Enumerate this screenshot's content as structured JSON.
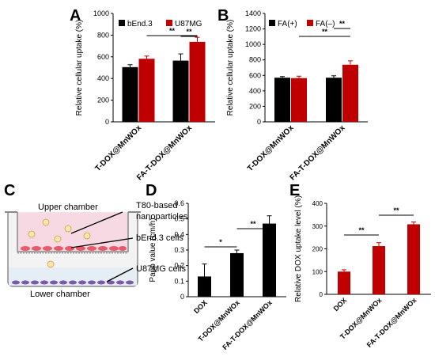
{
  "colors": {
    "black": "#000000",
    "red": "#c00000",
    "gray": "#808080"
  },
  "chart_data": [
    {
      "panel": "A",
      "type": "bar",
      "categories": [
        "T-DOX@MnWOx",
        "FA-T-DOX@MnWOx"
      ],
      "series": [
        {
          "name": "bEnd.3",
          "color": "#000000",
          "values": [
            505,
            565
          ],
          "errors": [
            22,
            62
          ]
        },
        {
          "name": "U87MG",
          "color": "#c00000",
          "values": [
            582,
            738
          ],
          "errors": [
            25,
            42
          ]
        }
      ],
      "ylabel": "Relative cellular uptake (%)",
      "ylim": [
        0,
        1000
      ],
      "yticks": [
        0,
        200,
        400,
        600,
        800,
        1000
      ],
      "legend": "top-left",
      "significance": [
        {
          "from": [
            0,
            1
          ],
          "to": [
            1,
            1
          ],
          "label": "**"
        },
        {
          "from": [
            1,
            0
          ],
          "to": [
            1,
            1
          ],
          "label": "**"
        }
      ]
    },
    {
      "panel": "B",
      "type": "bar",
      "categories": [
        "T-DOX@MnWOx",
        "FA-T-DOX@MnWOx"
      ],
      "series": [
        {
          "name": "FA(+)",
          "color": "#000000",
          "values": [
            570,
            570
          ],
          "errors": [
            15,
            25
          ]
        },
        {
          "name": "FA(–)",
          "color": "#c00000",
          "values": [
            565,
            738
          ],
          "errors": [
            25,
            50
          ]
        }
      ],
      "ylabel": "Relative cellular uptake (%)",
      "ylim": [
        0,
        1400
      ],
      "yticks": [
        0,
        200,
        400,
        600,
        800,
        1000,
        1200,
        1400
      ],
      "legend": "top-left",
      "significance": [
        {
          "from": [
            0,
            1
          ],
          "to": [
            1,
            1
          ],
          "label": "**"
        },
        {
          "from": [
            1,
            0
          ],
          "to": [
            1,
            1
          ],
          "label": "**"
        }
      ]
    },
    {
      "panel": "D",
      "type": "bar",
      "categories": [
        "DOX",
        "T-DOX@MnWOx",
        "FA-T-DOX@MnWOx"
      ],
      "series": [
        {
          "name": "",
          "color": "#000000",
          "values": [
            0.13,
            0.28,
            0.47
          ],
          "errors": [
            0.08,
            0.02,
            0.05
          ]
        }
      ],
      "ylabel": "Papp value (cm/h)",
      "ylim": [
        0,
        0.6
      ],
      "yticks": [
        0,
        0.1,
        0.2,
        0.3,
        0.4,
        0.5,
        0.6
      ],
      "significance": [
        {
          "from": [
            0,
            0
          ],
          "to": [
            1,
            0
          ],
          "label": "*"
        },
        {
          "from": [
            1,
            0
          ],
          "to": [
            2,
            0
          ],
          "label": "**"
        }
      ]
    },
    {
      "panel": "E",
      "type": "bar",
      "categories": [
        "DOX",
        "T-DOX@MnWOx",
        "FA-T-DOX@MnWOx"
      ],
      "series": [
        {
          "name": "",
          "color": "#c00000",
          "values": [
            100,
            212,
            308
          ],
          "errors": [
            8,
            15,
            10
          ]
        }
      ],
      "ylabel": "Relative DOX uptake level (%)",
      "ylim": [
        0,
        400
      ],
      "yticks": [
        0,
        100,
        200,
        300,
        400
      ],
      "significance": [
        {
          "from": [
            0,
            0
          ],
          "to": [
            1,
            0
          ],
          "label": "**"
        },
        {
          "from": [
            1,
            0
          ],
          "to": [
            2,
            0
          ],
          "label": "**"
        }
      ]
    }
  ],
  "panels": {
    "A": "A",
    "B": "B",
    "C": "C",
    "D": "D",
    "E": "E"
  },
  "diagram": {
    "upper": "Upper chamber",
    "lower": "Lower chamber",
    "np_line1": "T80-based",
    "np_line2": "nanoparticles",
    "bend": "bEnd.3 cells",
    "u87": "U87MG cells"
  }
}
